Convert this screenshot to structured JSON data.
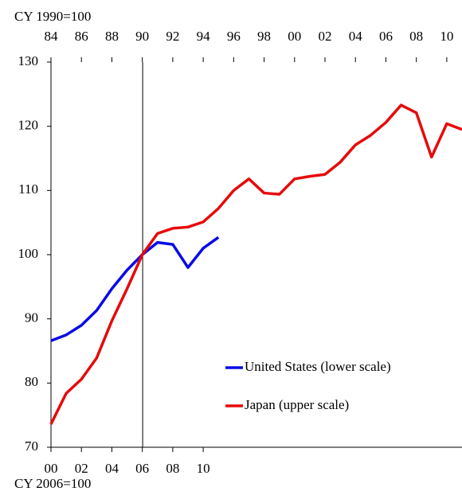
{
  "chart_data": {
    "type": "line",
    "xlabel": "CY 1990=100",
    "x2label": "CY 2006=100",
    "xlim": [
      1984,
      2011
    ],
    "xticks": [
      {
        "value": 1984,
        "label": "84"
      },
      {
        "value": 1986,
        "label": "86"
      },
      {
        "value": 1988,
        "label": "88"
      },
      {
        "value": 1990,
        "label": "90"
      },
      {
        "value": 1992,
        "label": "92"
      },
      {
        "value": 1994,
        "label": "94"
      },
      {
        "value": 1996,
        "label": "96"
      },
      {
        "value": 1998,
        "label": "98"
      },
      {
        "value": 2000,
        "label": "00"
      },
      {
        "value": 2002,
        "label": "02"
      },
      {
        "value": 2004,
        "label": "04"
      },
      {
        "value": 2006,
        "label": "06"
      },
      {
        "value": 2008,
        "label": "08"
      },
      {
        "value": 2010,
        "label": "10"
      }
    ],
    "x2lim": [
      2000,
      2027
    ],
    "x2ticks": [
      {
        "value": 2000,
        "label": "00"
      },
      {
        "value": 2002,
        "label": "02"
      },
      {
        "value": 2004,
        "label": "04"
      },
      {
        "value": 2006,
        "label": "06"
      },
      {
        "value": 2008,
        "label": "08"
      },
      {
        "value": 2010,
        "label": "10"
      }
    ],
    "ylim": [
      70,
      130
    ],
    "yticks": [
      70,
      80,
      90,
      100,
      110,
      120,
      130
    ],
    "series": [
      {
        "name": "United States (lower scale)",
        "color": "#0a0ae6",
        "xaxis": "x2",
        "x": [
          2000,
          2001,
          2002,
          2003,
          2004,
          2005,
          2006,
          2007,
          2008,
          2009,
          2010,
          2011
        ],
        "values": [
          86.6,
          87.5,
          89.0,
          91.3,
          94.7,
          97.6,
          100,
          101.9,
          101.6,
          98.0,
          101.0,
          102.7
        ]
      },
      {
        "name": "Japan (upper scale)",
        "color": "#e60a0a",
        "xaxis": "x",
        "x": [
          1984,
          1985,
          1986,
          1987,
          1988,
          1989,
          1990,
          1991,
          1992,
          1993,
          1994,
          1995,
          1996,
          1997,
          1998,
          1999,
          2000,
          2001,
          2002,
          2003,
          2004,
          2005,
          2006,
          2007,
          2008,
          2009,
          2010,
          2011
        ],
        "values": [
          73.6,
          78.4,
          80.6,
          83.9,
          89.7,
          94.7,
          100,
          103.3,
          104.1,
          104.3,
          105.1,
          107.2,
          110.0,
          111.8,
          109.6,
          109.4,
          111.8,
          112.2,
          112.5,
          114.4,
          117.1,
          118.6,
          120.6,
          123.3,
          122.1,
          115.2,
          120.4,
          119.5
        ]
      }
    ]
  }
}
